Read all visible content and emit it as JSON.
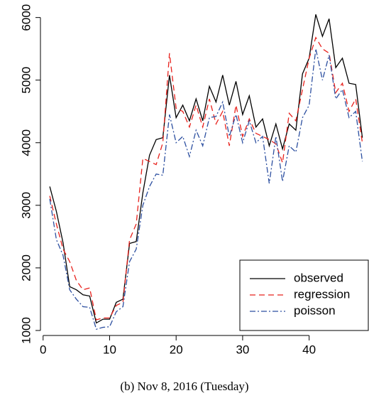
{
  "chart_data": {
    "type": "line",
    "caption": "(b) Nov 8, 2016 (Tuesday)",
    "x": [
      1,
      2,
      3,
      4,
      5,
      6,
      7,
      8,
      9,
      10,
      11,
      12,
      13,
      14,
      15,
      16,
      17,
      18,
      19,
      20,
      21,
      22,
      23,
      24,
      25,
      26,
      27,
      28,
      29,
      30,
      31,
      32,
      33,
      34,
      35,
      36,
      37,
      38,
      39,
      40,
      41,
      42,
      43,
      44,
      45,
      46,
      47,
      48
    ],
    "series": [
      {
        "name": "observed",
        "color": "#000000",
        "dash": "solid",
        "values": [
          3300,
          2900,
          2400,
          1700,
          1650,
          1570,
          1550,
          1120,
          1180,
          1180,
          1450,
          1500,
          2390,
          2420,
          3200,
          3800,
          4050,
          4080,
          5080,
          4400,
          4600,
          4350,
          4700,
          4350,
          4900,
          4650,
          5080,
          4600,
          4980,
          4450,
          4750,
          4250,
          4380,
          3950,
          4300,
          3900,
          4300,
          4200,
          5100,
          5350,
          6050,
          5700,
          5980,
          5200,
          5350,
          4950,
          4930,
          4080
        ]
      },
      {
        "name": "regression",
        "color": "#e8211c",
        "dash": "dashed",
        "values": [
          3150,
          2700,
          2300,
          2100,
          1800,
          1650,
          1680,
          1170,
          1200,
          1200,
          1400,
          1450,
          2450,
          2700,
          3750,
          3700,
          3650,
          4000,
          5430,
          4550,
          4500,
          4250,
          4600,
          4250,
          4700,
          4300,
          4500,
          3950,
          4600,
          4100,
          4380,
          4150,
          4100,
          4050,
          3980,
          3680,
          4470,
          4350,
          4850,
          5350,
          5680,
          5500,
          5430,
          4800,
          4950,
          4500,
          4700,
          4000
        ]
      },
      {
        "name": "poisson",
        "color": "#2c4fa0",
        "dash": "dotdash",
        "values": [
          3100,
          2450,
          2200,
          1650,
          1500,
          1380,
          1370,
          1020,
          1050,
          1060,
          1300,
          1380,
          2100,
          2300,
          3000,
          3300,
          3500,
          3480,
          4450,
          4000,
          4100,
          3780,
          4200,
          3950,
          4400,
          4420,
          4650,
          4100,
          4450,
          4000,
          4350,
          4000,
          4100,
          3350,
          4100,
          3380,
          3950,
          3850,
          4400,
          4600,
          5500,
          5000,
          5400,
          4700,
          4850,
          4400,
          4500,
          3700
        ]
      }
    ],
    "xlim": [
      -0.4,
      49
    ],
    "ylim": [
      920,
      6280
    ],
    "xticks": [
      0,
      10,
      20,
      30,
      40
    ],
    "yticks": [
      1000,
      2000,
      3000,
      4000,
      5000,
      6000
    ],
    "legend": "bottomright"
  }
}
